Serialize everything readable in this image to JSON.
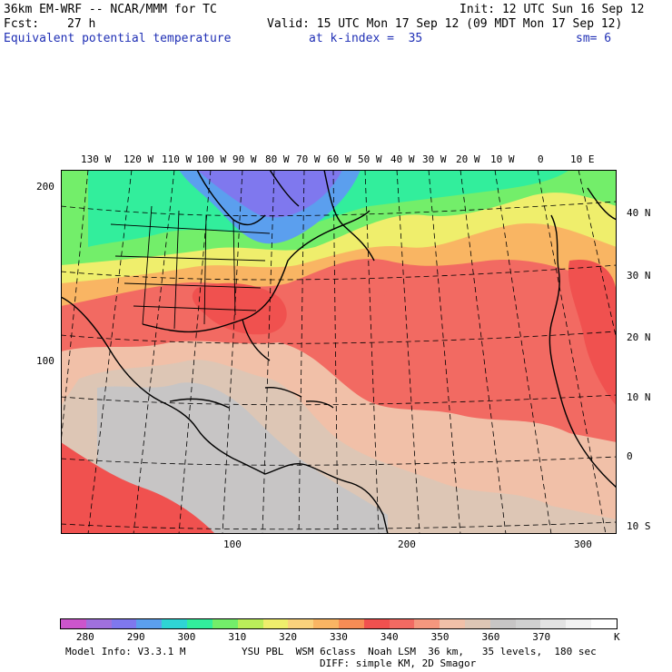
{
  "header": {
    "model": "36km EM-WRF -- NCAR/MMM for TC",
    "init": "Init: 12 UTC Sun 16 Sep 12",
    "fcst_label": "Fcst:",
    "fcst_value": "27 h",
    "valid": "Valid: 15 UTC Mon 17 Sep 12 (09 MDT Mon 17 Sep 12)",
    "field": "Equivalent potential temperature",
    "level": "at k-index =  35",
    "smooth": "sm= 6"
  },
  "map": {
    "top_lon_labels": [
      "130 W",
      "120 W",
      "110 W",
      "100 W",
      "90 W",
      "80 W",
      "70 W",
      "60 W",
      "50 W",
      "40 W",
      "30 W",
      "20 W",
      "10 W",
      "0",
      "10 E"
    ],
    "right_lat_labels": [
      "40 N",
      "30 N",
      "20 N",
      "10 N",
      "0",
      "10 S"
    ],
    "left_grid_labels": [
      "200",
      "100"
    ],
    "bottom_grid_labels": [
      "100",
      "200",
      "300"
    ]
  },
  "legend": {
    "colors": [
      "#cc55cc",
      "#a070dd",
      "#7f78ee",
      "#5b9fee",
      "#2fd4d4",
      "#32ee9c",
      "#73ee6a",
      "#baee5a",
      "#efee6c",
      "#fad27c",
      "#f9b563",
      "#f78c55",
      "#f0514f",
      "#f26a62",
      "#f5977e",
      "#f1c0a8",
      "#ddc6b5",
      "#c7c5c5",
      "#d0d0d0",
      "#e3e3e3",
      "#f2f2f2",
      "#ffffff"
    ],
    "labels": [
      "280",
      "290",
      "300",
      "310",
      "320",
      "330",
      "340",
      "350",
      "360",
      "370"
    ],
    "unit": "K"
  },
  "footer": {
    "model_info": "Model Info: V3.3.1 M",
    "physics1": "YSU PBL  WSM 6class  Noah LSM  36 km,   35 levels,  180 sec",
    "physics2": "DIFF: simple KM, 2D Smagor"
  }
}
